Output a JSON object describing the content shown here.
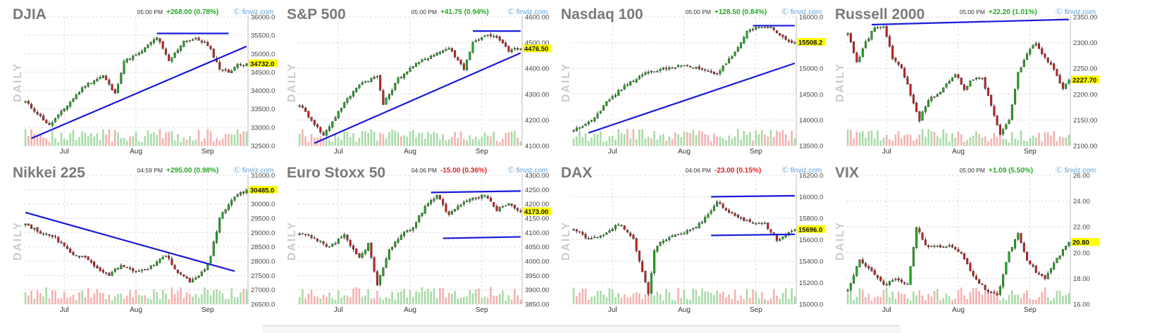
{
  "source_label": "finviz.com",
  "daily_label": "DAILY",
  "colors": {
    "up": "#22aa22",
    "down": "#cc2222",
    "wick": "#222222",
    "trendline": "#1a1adb",
    "vol_up": "#a9dba9",
    "vol_down": "#f4b2b2",
    "change_up": "#22aa22",
    "change_down": "#dd2222",
    "price_highlight": "#ffff00",
    "title": "#7a7a7a",
    "daily": "#cccccc",
    "grid": "#dddddd"
  },
  "chart_data": [
    {
      "type": "line",
      "name": "DJIA",
      "time": "05:00 PM",
      "change": "+268.00 (0.78%)",
      "direction": "up",
      "ylim": [
        32500,
        36000
      ],
      "yticks": [
        "36000.0",
        "35500.0",
        "35000.0",
        "34500.0",
        "34000.0",
        "33500.0",
        "33000.0",
        "32500.0"
      ],
      "ytick_values": [
        36000,
        35500,
        35000,
        34500,
        34000,
        33500,
        33000,
        32500
      ],
      "last": "34732.0",
      "last_value": 34732,
      "xticks": [
        "Jul",
        "Aug",
        "Sep"
      ],
      "xtick_index": [
        13,
        37,
        61
      ],
      "series": [
        {
          "x": [
            0,
            8,
            14,
            20,
            26,
            30,
            33,
            38,
            44,
            48,
            50,
            53,
            57,
            60,
            62,
            65,
            68,
            71
          ],
          "values": [
            33700,
            33050,
            33600,
            34150,
            34400,
            33900,
            34800,
            35000,
            35450,
            34800,
            35000,
            35350,
            35400,
            35300,
            35100,
            34600,
            34500,
            34700
          ]
        }
      ],
      "trendlines": [
        [
          [
            2,
            32700
          ],
          [
            74,
            35200
          ]
        ],
        [
          [
            44,
            35550
          ],
          [
            68,
            35550
          ]
        ]
      ]
    },
    {
      "type": "line",
      "name": "S&P 500",
      "time": "05:00 PM",
      "change": "+41.75 (0.94%)",
      "direction": "up",
      "ylim": [
        4100,
        4600
      ],
      "yticks": [
        "4600.00",
        "4500.00",
        "4400.00",
        "4300.00",
        "4200.00",
        "4100.00"
      ],
      "ytick_values": [
        4600,
        4500,
        4400,
        4300,
        4200,
        4100
      ],
      "last": "4476.50",
      "last_value": 4476.5,
      "xticks": [
        "Jul",
        "Aug",
        "Sep"
      ],
      "xtick_index": [
        13,
        37,
        61
      ],
      "series": [
        {
          "x": [
            0,
            8,
            14,
            20,
            26,
            28,
            33,
            38,
            44,
            50,
            55,
            58,
            62,
            66,
            70,
            73
          ],
          "values": [
            4260,
            4140,
            4250,
            4340,
            4370,
            4260,
            4360,
            4410,
            4450,
            4480,
            4400,
            4500,
            4530,
            4520,
            4470,
            4476
          ]
        }
      ],
      "trendlines": [
        [
          [
            5,
            4110
          ],
          [
            74,
            4460
          ]
        ],
        [
          [
            58,
            4545
          ],
          [
            74,
            4545
          ]
        ]
      ]
    },
    {
      "type": "line",
      "name": "Nasdaq 100",
      "time": "05:00 PM",
      "change": "+128.50 (0.84%)",
      "direction": "up",
      "ylim": [
        13500,
        16000
      ],
      "yticks": [
        "16000.0",
        "15500.0",
        "15000.0",
        "14500.0",
        "14000.0",
        "13500.0"
      ],
      "ytick_values": [
        16000,
        15500,
        15000,
        14500,
        14000,
        13500
      ],
      "last": "15508.2",
      "last_value": 15508.2,
      "xticks": [
        "Jul",
        "Aug",
        "Sep"
      ],
      "xtick_index": [
        13,
        37,
        61
      ],
      "series": [
        {
          "x": [
            0,
            6,
            12,
            18,
            24,
            30,
            36,
            42,
            48,
            54,
            58,
            62,
            66,
            70,
            73
          ],
          "values": [
            13800,
            14000,
            14400,
            14700,
            14900,
            15000,
            15050,
            15000,
            14900,
            15300,
            15700,
            15800,
            15800,
            15600,
            15500
          ]
        }
      ],
      "trendlines": [
        [
          [
            5,
            13750
          ],
          [
            74,
            15100
          ]
        ],
        [
          [
            60,
            15830
          ],
          [
            74,
            15830
          ]
        ]
      ]
    },
    {
      "type": "line",
      "name": "Russell 2000",
      "time": "05:00 PM",
      "change": "+22.20 (1.01%)",
      "direction": "up",
      "ylim": [
        2100,
        2350
      ],
      "yticks": [
        "2350.00",
        "2300.00",
        "2250.00",
        "2200.00",
        "2150.00",
        "2100.00"
      ],
      "ytick_values": [
        2350,
        2300,
        2250,
        2200,
        2150,
        2100
      ],
      "last": "2227.70",
      "last_value": 2227.7,
      "xticks": [
        "Jul",
        "Aug",
        "Sep"
      ],
      "xtick_index": [
        13,
        37,
        61
      ],
      "series": [
        {
          "x": [
            0,
            3,
            6,
            9,
            12,
            15,
            18,
            21,
            24,
            27,
            30,
            33,
            36,
            39,
            42,
            45,
            48,
            51,
            54,
            57,
            60,
            63,
            66,
            69,
            72,
            74
          ],
          "values": [
            2320,
            2260,
            2300,
            2330,
            2330,
            2270,
            2250,
            2200,
            2150,
            2190,
            2200,
            2220,
            2240,
            2210,
            2230,
            2230,
            2180,
            2120,
            2150,
            2240,
            2280,
            2300,
            2270,
            2250,
            2210,
            2228
          ]
        }
      ],
      "trendlines": [
        [
          [
            8,
            2335
          ],
          [
            74,
            2345
          ]
        ]
      ]
    },
    {
      "type": "line",
      "name": "Nikkei 225",
      "time": "04:59 PM",
      "change": "+295.00 (0.98%)",
      "direction": "up",
      "ylim": [
        26500,
        31000
      ],
      "yticks": [
        "31000.0",
        "30500.0",
        "30000.0",
        "29500.0",
        "29000.0",
        "28500.0",
        "28000.0",
        "27500.0",
        "27000.0",
        "26500.0"
      ],
      "ytick_values": [
        31000,
        30500,
        30000,
        29500,
        29000,
        28500,
        28000,
        27500,
        27000,
        26500
      ],
      "last": "30485.0",
      "last_value": 30485,
      "xticks": [
        "Jul",
        "Aug",
        "Sep"
      ],
      "xtick_index": [
        13,
        37,
        61
      ],
      "series": [
        {
          "x": [
            0,
            5,
            10,
            15,
            20,
            25,
            28,
            32,
            37,
            42,
            47,
            51,
            55,
            58,
            60,
            62,
            65,
            68,
            71,
            74
          ],
          "values": [
            29300,
            29000,
            28800,
            28300,
            28100,
            27700,
            27500,
            27900,
            27600,
            27800,
            28200,
            27600,
            27300,
            27500,
            27700,
            28200,
            29500,
            30000,
            30300,
            30485
          ]
        }
      ],
      "trendlines": [
        [
          [
            0,
            29700
          ],
          [
            70,
            27650
          ]
        ]
      ]
    },
    {
      "type": "line",
      "name": "Euro Stoxx 50",
      "time": "04:06 PM",
      "change": "-15.00 (0.36%)",
      "direction": "down",
      "ylim": [
        3850,
        4300
      ],
      "yticks": [
        "4300.00",
        "4250.00",
        "4200.00",
        "4150.00",
        "4100.00",
        "4050.00",
        "4000.00",
        "3950.00",
        "3900.00",
        "3850.00"
      ],
      "ytick_values": [
        4300,
        4250,
        4200,
        4150,
        4100,
        4050,
        4000,
        3950,
        3900,
        3850
      ],
      "last": "4173.00",
      "last_value": 4173,
      "xticks": [
        "Jul",
        "Aug",
        "Sep"
      ],
      "xtick_index": [
        13,
        37,
        61
      ],
      "series": [
        {
          "x": [
            0,
            5,
            10,
            15,
            20,
            23,
            26,
            30,
            34,
            38,
            42,
            46,
            50,
            54,
            58,
            62,
            66,
            70,
            74
          ],
          "values": [
            4100,
            4080,
            4050,
            4090,
            4010,
            4060,
            3920,
            4040,
            4090,
            4120,
            4190,
            4230,
            4160,
            4200,
            4220,
            4230,
            4180,
            4200,
            4173
          ]
        }
      ],
      "trendlines": [
        [
          [
            44,
            4240
          ],
          [
            74,
            4245
          ]
        ],
        [
          [
            48,
            4080
          ],
          [
            74,
            4085
          ]
        ]
      ]
    },
    {
      "type": "line",
      "name": "DAX",
      "time": "04:06 PM",
      "change": "-23.00 (0.15%)",
      "direction": "down",
      "ylim": [
        15000,
        16200
      ],
      "yticks": [
        "16200.0",
        "16000.0",
        "15800.0",
        "15600.0",
        "15400.0",
        "15200.0",
        "15000.0"
      ],
      "ytick_values": [
        16200,
        16000,
        15800,
        15600,
        15400,
        15200,
        15000
      ],
      "last": "15696.0",
      "last_value": 15696,
      "xticks": [
        "Jul",
        "Aug",
        "Sep"
      ],
      "xtick_index": [
        13,
        37,
        61
      ],
      "series": [
        {
          "x": [
            0,
            5,
            10,
            15,
            20,
            25,
            27,
            30,
            35,
            40,
            44,
            48,
            52,
            56,
            60,
            64,
            68,
            71,
            74
          ],
          "values": [
            15700,
            15600,
            15650,
            15750,
            15600,
            15100,
            15500,
            15600,
            15650,
            15700,
            15800,
            15950,
            15850,
            15800,
            15750,
            15750,
            15600,
            15650,
            15696
          ]
        }
      ],
      "trendlines": [
        [
          [
            46,
            16000
          ],
          [
            74,
            16010
          ]
        ],
        [
          [
            46,
            15640
          ],
          [
            74,
            15650
          ]
        ]
      ]
    },
    {
      "type": "line",
      "name": "VIX",
      "time": "05:00 PM",
      "change": "+1.09 (5.50%)",
      "direction": "up",
      "ylim": [
        16,
        26
      ],
      "yticks": [
        "26.00",
        "24.00",
        "22.00",
        "20.00",
        "18.00",
        "16.00"
      ],
      "ytick_values": [
        26,
        24,
        22,
        20,
        18,
        16
      ],
      "last": "20.80",
      "last_value": 20.8,
      "xticks": [
        "Jul",
        "Aug",
        "Sep"
      ],
      "xtick_index": [
        13,
        37,
        61
      ],
      "series": [
        {
          "x": [
            0,
            4,
            8,
            12,
            16,
            20,
            23,
            26,
            30,
            34,
            38,
            42,
            46,
            50,
            54,
            57,
            60,
            63,
            66,
            70,
            74
          ],
          "values": [
            17,
            19.5,
            18.5,
            17.5,
            18,
            17.5,
            22,
            20.5,
            20.5,
            20.5,
            20,
            18.2,
            17.2,
            16.6,
            20,
            21.5,
            19.5,
            18.5,
            18,
            19.5,
            20.8
          ]
        }
      ],
      "trendlines": []
    }
  ]
}
